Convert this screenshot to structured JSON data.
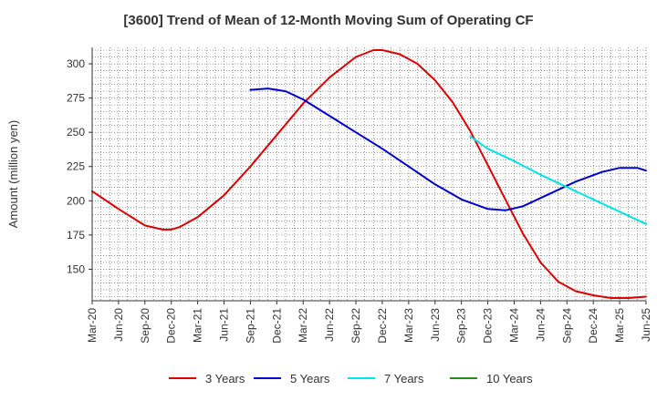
{
  "chart_data": {
    "type": "line",
    "title": "[3600]  Trend of Mean of 12-Month Moving Sum of Operating CF",
    "xlabel": "",
    "ylabel": "Amount (million yen)",
    "ylim": [
      127,
      312
    ],
    "yticks": [
      150,
      175,
      200,
      225,
      250,
      275,
      300
    ],
    "xlim_months": [
      0,
      63
    ],
    "x_tick_labels": [
      "Mar-20",
      "Jun-20",
      "Sep-20",
      "Dec-20",
      "Mar-21",
      "Jun-21",
      "Sep-21",
      "Dec-21",
      "Mar-22",
      "Jun-22",
      "Sep-22",
      "Dec-22",
      "Mar-23",
      "Jun-23",
      "Sep-23",
      "Dec-23",
      "Mar-24",
      "Jun-24",
      "Sep-24",
      "Dec-24",
      "Mar-25",
      "Jun-25"
    ],
    "x_unit_note": "x values are months since Mar-20",
    "grid": true,
    "legend_position": "bottom",
    "series": [
      {
        "name": "3 Years",
        "color": "#dd0000",
        "points": [
          [
            0,
            207
          ],
          [
            3,
            194
          ],
          [
            6,
            182
          ],
          [
            8,
            179
          ],
          [
            9,
            179
          ],
          [
            10,
            181
          ],
          [
            12,
            188
          ],
          [
            15,
            204
          ],
          [
            18,
            225
          ],
          [
            21,
            248
          ],
          [
            24,
            271
          ],
          [
            27,
            290
          ],
          [
            30,
            305
          ],
          [
            32,
            310
          ],
          [
            33,
            310
          ],
          [
            35,
            307
          ],
          [
            37,
            300
          ],
          [
            39,
            288
          ],
          [
            41,
            272
          ],
          [
            43,
            251
          ],
          [
            45,
            226
          ],
          [
            47,
            201
          ],
          [
            49,
            176
          ],
          [
            51,
            155
          ],
          [
            53,
            141
          ],
          [
            55,
            134
          ],
          [
            57,
            131
          ],
          [
            59,
            129
          ],
          [
            61,
            129
          ],
          [
            63,
            130
          ]
        ]
      },
      {
        "name": "5 Years",
        "color": "#0000cc",
        "points": [
          [
            18,
            281
          ],
          [
            20,
            282
          ],
          [
            22,
            280
          ],
          [
            24,
            274
          ],
          [
            27,
            262
          ],
          [
            30,
            250
          ],
          [
            33,
            238
          ],
          [
            36,
            225
          ],
          [
            39,
            212
          ],
          [
            42,
            201
          ],
          [
            45,
            194
          ],
          [
            47,
            193
          ],
          [
            49,
            196
          ],
          [
            52,
            205
          ],
          [
            55,
            214
          ],
          [
            58,
            221
          ],
          [
            60,
            224
          ],
          [
            62,
            224
          ],
          [
            63,
            222
          ]
        ]
      },
      {
        "name": "7 Years",
        "color": "#00e5e5",
        "points": [
          [
            43,
            247
          ],
          [
            45,
            238
          ],
          [
            48,
            229
          ],
          [
            51,
            219
          ],
          [
            54,
            210
          ],
          [
            57,
            201
          ],
          [
            60,
            192
          ],
          [
            63,
            183
          ]
        ]
      },
      {
        "name": "10 Years",
        "color": "#228b22",
        "points": []
      }
    ]
  }
}
